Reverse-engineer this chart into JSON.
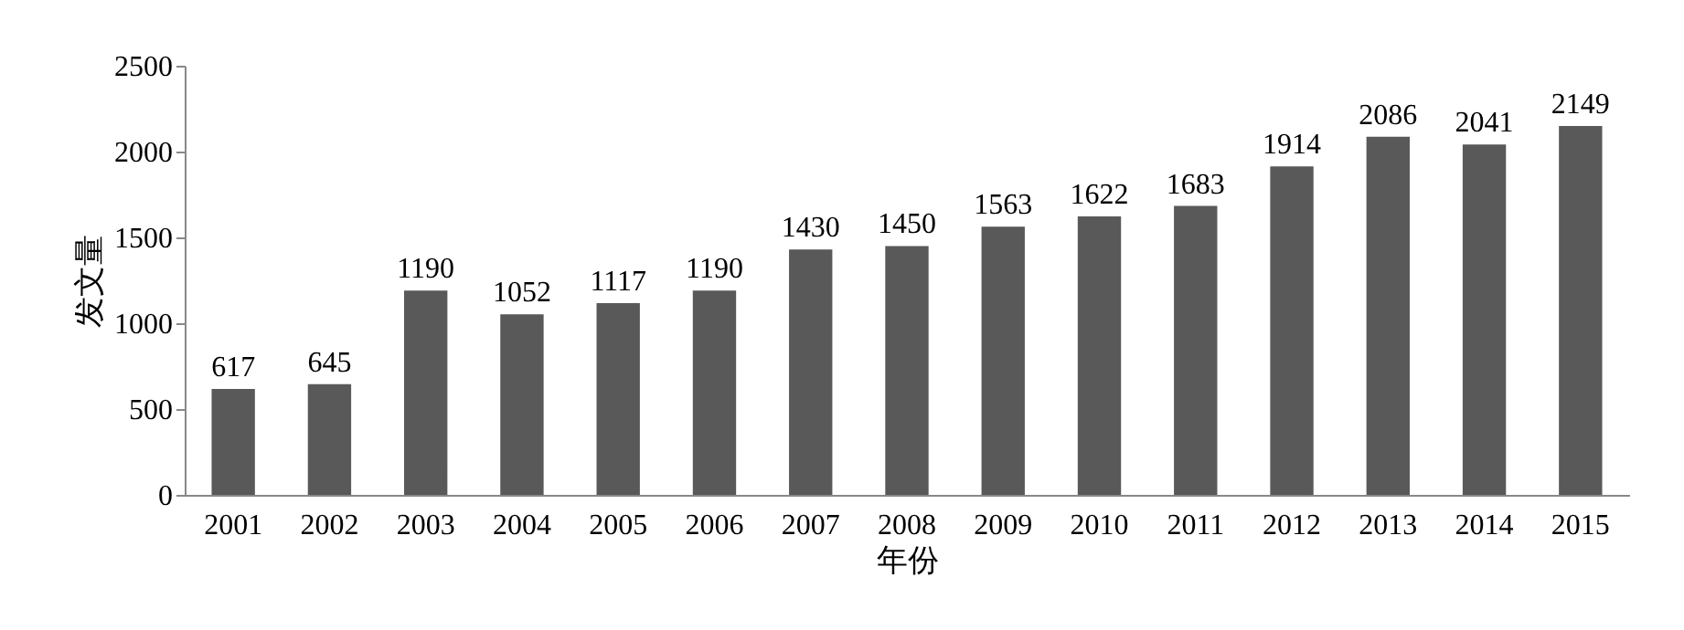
{
  "chart_data": {
    "type": "bar",
    "xlabel": "年份",
    "ylabel": "发文量",
    "categories": [
      "2001",
      "2002",
      "2003",
      "2004",
      "2005",
      "2006",
      "2007",
      "2008",
      "2009",
      "2010",
      "2011",
      "2012",
      "2013",
      "2014",
      "2015"
    ],
    "values": [
      617,
      645,
      1190,
      1052,
      1117,
      1190,
      1430,
      1450,
      1563,
      1622,
      1683,
      1914,
      2086,
      2041,
      2149
    ],
    "color": "#595959",
    "ylim": [
      0,
      2500
    ],
    "yticks": [
      0,
      500,
      1000,
      1500,
      2000,
      2500
    ],
    "data_labels": true,
    "grid": false
  }
}
